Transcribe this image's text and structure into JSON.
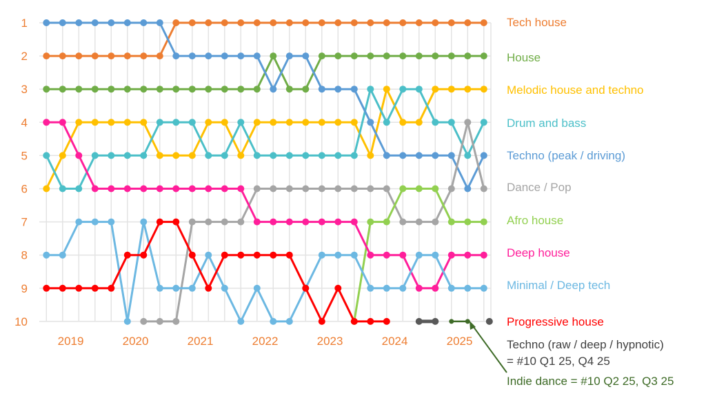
{
  "chart_data": {
    "type": "line",
    "subtype": "bump",
    "x": [
      "2019 Q1",
      "2019 Q2",
      "2019 Q3",
      "2019 Q4",
      "2020 Q1",
      "2020 Q2",
      "2020 Q3",
      "2020 Q4",
      "2021 Q1",
      "2021 Q2",
      "2021 Q3",
      "2021 Q4",
      "2022 Q1",
      "2022 Q2",
      "2022 Q3",
      "2022 Q4",
      "2023 Q1",
      "2023 Q2",
      "2023 Q3",
      "2023 Q4",
      "2024 Q1",
      "2024 Q2",
      "2024 Q3",
      "2024 Q4",
      "2025 Q1",
      "2025 Q2",
      "2025 Q3",
      "2025 Q4"
    ],
    "year_labels": [
      "2019",
      "2020",
      "2021",
      "2022",
      "2023",
      "2024",
      "2025"
    ],
    "y_ticks": [
      "1",
      "2",
      "3",
      "4",
      "5",
      "6",
      "7",
      "8",
      "9",
      "10"
    ],
    "ylim": [
      1,
      10
    ],
    "y_reversed": true,
    "grid": true,
    "legend_placement": "right, labels aligned to series",
    "axis_color": "#ED7D31",
    "series": [
      {
        "name": "Tech house",
        "color": "#ED7D31",
        "values": [
          2,
          2,
          2,
          2,
          2,
          2,
          2,
          2,
          1,
          1,
          1,
          1,
          1,
          1,
          1,
          1,
          1,
          1,
          1,
          1,
          1,
          1,
          1,
          1,
          1,
          1,
          1,
          1
        ]
      },
      {
        "name": "House",
        "color": "#70AD47",
        "values": [
          3,
          3,
          3,
          3,
          3,
          3,
          3,
          3,
          3,
          3,
          3,
          3,
          3,
          3,
          2,
          3,
          3,
          2,
          2,
          2,
          2,
          2,
          2,
          2,
          2,
          2,
          2,
          2
        ]
      },
      {
        "name": "Melodic house and techno",
        "color": "#FFC000",
        "values": [
          6,
          5,
          4,
          4,
          4,
          4,
          4,
          5,
          5,
          5,
          4,
          4,
          5,
          4,
          4,
          4,
          4,
          4,
          4,
          4,
          5,
          3,
          4,
          4,
          3,
          3,
          3,
          3
        ]
      },
      {
        "name": "Drum and bass",
        "color": "#4BBFC8",
        "values": [
          5,
          6,
          6,
          5,
          5,
          5,
          5,
          4,
          4,
          4,
          5,
          5,
          4,
          5,
          5,
          5,
          5,
          5,
          5,
          5,
          3,
          4,
          3,
          3,
          4,
          4,
          5,
          4
        ]
      },
      {
        "name": "Techno (peak / driving)",
        "color": "#5B9BD5",
        "values": [
          1,
          1,
          1,
          1,
          1,
          1,
          1,
          1,
          2,
          2,
          2,
          2,
          2,
          2,
          3,
          2,
          2,
          3,
          3,
          3,
          4,
          5,
          5,
          5,
          5,
          5,
          6,
          5
        ]
      },
      {
        "name": "Dance / Pop",
        "color": "#A5A5A5",
        "values": [
          null,
          null,
          null,
          null,
          null,
          null,
          10,
          10,
          10,
          7,
          7,
          7,
          7,
          6,
          6,
          6,
          6,
          6,
          6,
          6,
          6,
          6,
          7,
          7,
          7,
          6,
          4,
          6
        ]
      },
      {
        "name": "Afro house",
        "color": "#92D050",
        "values": [
          null,
          null,
          null,
          null,
          null,
          null,
          null,
          null,
          null,
          null,
          null,
          null,
          null,
          null,
          null,
          null,
          null,
          null,
          null,
          10,
          7,
          7,
          6,
          6,
          6,
          7,
          7,
          7
        ]
      },
      {
        "name": "Deep house",
        "color": "#FF1E9A",
        "values": [
          4,
          4,
          5,
          6,
          6,
          6,
          6,
          6,
          6,
          6,
          6,
          6,
          6,
          7,
          7,
          7,
          7,
          7,
          7,
          7,
          8,
          8,
          8,
          9,
          9,
          8,
          8,
          8
        ]
      },
      {
        "name": "Minimal / Deep tech",
        "color": "#6CB8E2",
        "values": [
          8,
          8,
          7,
          7,
          7,
          10,
          7,
          9,
          9,
          9,
          8,
          9,
          10,
          9,
          10,
          10,
          9,
          8,
          8,
          8,
          9,
          9,
          9,
          8,
          8,
          9,
          9,
          9
        ]
      },
      {
        "name": "Progressive house",
        "color": "#FF0000",
        "values": [
          9,
          9,
          9,
          9,
          9,
          8,
          8,
          7,
          7,
          8,
          9,
          8,
          8,
          8,
          8,
          8,
          9,
          10,
          9,
          10,
          10,
          10,
          null,
          null,
          null,
          null,
          null,
          null
        ]
      },
      {
        "name": "Techno (raw / deep / hypnotic)",
        "color": "#595959",
        "values": [
          null,
          null,
          null,
          null,
          null,
          null,
          null,
          null,
          null,
          null,
          null,
          null,
          null,
          null,
          null,
          null,
          null,
          null,
          null,
          null,
          null,
          null,
          null,
          10,
          10,
          null,
          null,
          10
        ]
      },
      {
        "name": "Indie dance",
        "color": "#3E6B27",
        "values": [
          null,
          null,
          null,
          null,
          null,
          null,
          null,
          null,
          null,
          null,
          null,
          null,
          null,
          null,
          null,
          null,
          null,
          null,
          null,
          null,
          null,
          null,
          null,
          null,
          null,
          10,
          10,
          null
        ]
      }
    ],
    "annotations": {
      "techno_raw_line1": "Techno (raw / deep / hypnotic)",
      "techno_raw_line2": "= #10 Q1 25, Q4 25",
      "indie_dance": "Indie dance = #10 Q2 25, Q3 25"
    }
  }
}
